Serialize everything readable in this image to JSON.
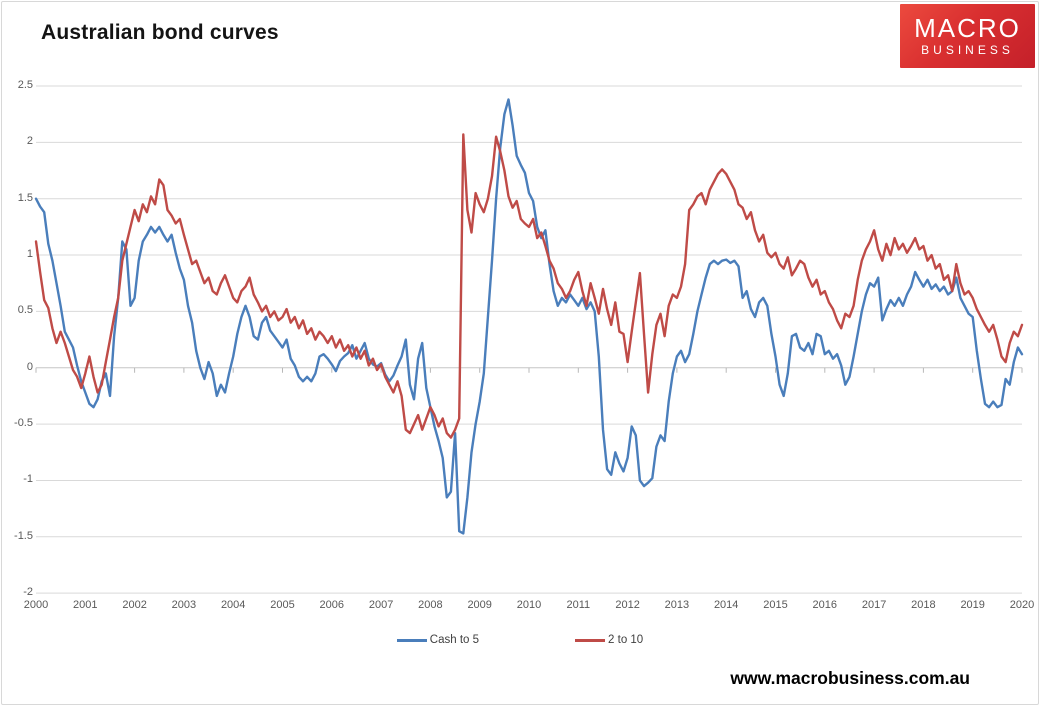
{
  "header": {
    "title": "Australian bond curves",
    "logo": {
      "line1": "MACRO",
      "line2": "BUSINESS",
      "bg_color": "#d92f30"
    }
  },
  "footer": {
    "url": "www.macrobusiness.com.au"
  },
  "chart_data": {
    "type": "line",
    "title": "Australian bond curves",
    "xlabel": "",
    "ylabel": "",
    "ylim": [
      -2,
      2.5
    ],
    "grid": "horizontal",
    "legend_position": "bottom",
    "x_start_year": 2000,
    "x_end_year": 2020,
    "points_per_year": 12,
    "x_tick_labels": [
      "2000",
      "2001",
      "2002",
      "2003",
      "2004",
      "2005",
      "2006",
      "2007",
      "2008",
      "2009",
      "2010",
      "2011",
      "2012",
      "2013",
      "2014",
      "2015",
      "2016",
      "2017",
      "2018",
      "2019",
      "2020"
    ],
    "y_ticks": [
      2.5,
      2,
      1.5,
      1,
      0.5,
      0,
      -0.5,
      -1,
      -1.5,
      -2
    ],
    "y_tick_labels": [
      "2.5",
      "2",
      "1.5",
      "1",
      "0.5",
      "0",
      "-0.5",
      "-1",
      "-1.5",
      "-2"
    ],
    "colors": {
      "grid": "#d9d9d9",
      "zero_axis": "#c6c6c6",
      "tick": "#b8b8b8",
      "tick_text": "#595959"
    },
    "series": [
      {
        "name": "Cash to 5",
        "color": "#4a7ebb",
        "values": [
          1.5,
          1.43,
          1.38,
          1.1,
          0.95,
          0.75,
          0.55,
          0.32,
          0.25,
          0.18,
          0.02,
          -0.12,
          -0.22,
          -0.32,
          -0.35,
          -0.28,
          -0.12,
          -0.05,
          -0.25,
          0.28,
          0.62,
          1.12,
          1.05,
          0.55,
          0.62,
          0.95,
          1.12,
          1.18,
          1.25,
          1.2,
          1.25,
          1.18,
          1.12,
          1.18,
          1.02,
          0.88,
          0.78,
          0.55,
          0.4,
          0.15,
          0.0,
          -0.1,
          0.05,
          -0.05,
          -0.25,
          -0.15,
          -0.22,
          -0.05,
          0.1,
          0.3,
          0.45,
          0.55,
          0.45,
          0.28,
          0.25,
          0.4,
          0.45,
          0.33,
          0.28,
          0.23,
          0.18,
          0.25,
          0.08,
          0.02,
          -0.08,
          -0.12,
          -0.08,
          -0.12,
          -0.05,
          0.1,
          0.12,
          0.08,
          0.03,
          -0.03,
          0.06,
          0.1,
          0.13,
          0.2,
          0.08,
          0.15,
          0.22,
          0.08,
          0.03,
          0.01,
          0.04,
          -0.06,
          -0.12,
          -0.07,
          0.02,
          0.1,
          0.25,
          -0.15,
          -0.28,
          0.08,
          0.22,
          -0.18,
          -0.35,
          -0.52,
          -0.65,
          -0.8,
          -1.15,
          -1.1,
          -0.58,
          -1.45,
          -1.47,
          -1.15,
          -0.75,
          -0.5,
          -0.3,
          -0.05,
          0.45,
          0.95,
          1.5,
          1.95,
          2.25,
          2.38,
          2.15,
          1.88,
          1.8,
          1.73,
          1.55,
          1.48,
          1.25,
          1.15,
          1.22,
          0.92,
          0.68,
          0.55,
          0.62,
          0.58,
          0.65,
          0.6,
          0.55,
          0.62,
          0.52,
          0.58,
          0.5,
          0.1,
          -0.55,
          -0.9,
          -0.95,
          -0.75,
          -0.85,
          -0.92,
          -0.8,
          -0.52,
          -0.6,
          -1.0,
          -1.05,
          -1.02,
          -0.98,
          -0.7,
          -0.6,
          -0.65,
          -0.3,
          -0.05,
          0.1,
          0.15,
          0.05,
          0.12,
          0.3,
          0.5,
          0.65,
          0.8,
          0.92,
          0.95,
          0.92,
          0.95,
          0.96,
          0.93,
          0.95,
          0.9,
          0.62,
          0.68,
          0.52,
          0.45,
          0.58,
          0.62,
          0.55,
          0.3,
          0.1,
          -0.15,
          -0.25,
          -0.05,
          0.28,
          0.3,
          0.18,
          0.15,
          0.22,
          0.12,
          0.3,
          0.28,
          0.12,
          0.15,
          0.08,
          0.12,
          0.02,
          -0.15,
          -0.08,
          0.1,
          0.3,
          0.5,
          0.65,
          0.75,
          0.72,
          0.8,
          0.42,
          0.52,
          0.6,
          0.55,
          0.62,
          0.55,
          0.65,
          0.72,
          0.85,
          0.78,
          0.72,
          0.78,
          0.7,
          0.74,
          0.68,
          0.72,
          0.65,
          0.68,
          0.8,
          0.62,
          0.55,
          0.48,
          0.45,
          0.15,
          -0.1,
          -0.32,
          -0.35,
          -0.3,
          -0.35,
          -0.33,
          -0.1,
          -0.15,
          0.05,
          0.18,
          0.12
        ]
      },
      {
        "name": "2 to 10",
        "color": "#bf4b47",
        "values": [
          1.12,
          0.85,
          0.6,
          0.53,
          0.35,
          0.22,
          0.32,
          0.22,
          0.1,
          -0.02,
          -0.08,
          -0.18,
          -0.05,
          0.1,
          -0.08,
          -0.22,
          -0.15,
          0.05,
          0.25,
          0.45,
          0.62,
          0.95,
          1.1,
          1.25,
          1.4,
          1.3,
          1.45,
          1.38,
          1.52,
          1.45,
          1.67,
          1.62,
          1.4,
          1.35,
          1.28,
          1.32,
          1.18,
          1.05,
          0.92,
          0.95,
          0.85,
          0.75,
          0.8,
          0.68,
          0.65,
          0.75,
          0.82,
          0.72,
          0.62,
          0.58,
          0.68,
          0.72,
          0.8,
          0.65,
          0.58,
          0.5,
          0.55,
          0.45,
          0.5,
          0.42,
          0.45,
          0.52,
          0.4,
          0.45,
          0.35,
          0.42,
          0.3,
          0.35,
          0.25,
          0.32,
          0.28,
          0.22,
          0.28,
          0.18,
          0.25,
          0.15,
          0.2,
          0.1,
          0.18,
          0.08,
          0.15,
          0.02,
          0.08,
          -0.02,
          0.03,
          -0.08,
          -0.15,
          -0.22,
          -0.12,
          -0.25,
          -0.55,
          -0.58,
          -0.5,
          -0.42,
          -0.55,
          -0.45,
          -0.35,
          -0.42,
          -0.52,
          -0.45,
          -0.58,
          -0.62,
          -0.55,
          -0.45,
          2.07,
          1.4,
          1.2,
          1.55,
          1.45,
          1.38,
          1.5,
          1.7,
          2.05,
          1.92,
          1.75,
          1.52,
          1.42,
          1.48,
          1.32,
          1.28,
          1.25,
          1.32,
          1.15,
          1.2,
          1.08,
          0.95,
          0.88,
          0.75,
          0.7,
          0.62,
          0.68,
          0.78,
          0.85,
          0.68,
          0.55,
          0.75,
          0.62,
          0.48,
          0.7,
          0.52,
          0.38,
          0.58,
          0.32,
          0.3,
          0.05,
          0.32,
          0.58,
          0.84,
          0.3,
          -0.22,
          0.12,
          0.38,
          0.48,
          0.28,
          0.55,
          0.65,
          0.62,
          0.72,
          0.92,
          1.4,
          1.45,
          1.52,
          1.55,
          1.45,
          1.58,
          1.65,
          1.72,
          1.76,
          1.72,
          1.65,
          1.58,
          1.45,
          1.42,
          1.32,
          1.38,
          1.22,
          1.12,
          1.18,
          1.02,
          0.98,
          1.02,
          0.92,
          0.88,
          0.98,
          0.82,
          0.88,
          0.95,
          0.92,
          0.8,
          0.72,
          0.78,
          0.65,
          0.68,
          0.58,
          0.52,
          0.42,
          0.35,
          0.48,
          0.45,
          0.55,
          0.78,
          0.95,
          1.05,
          1.12,
          1.22,
          1.05,
          0.95,
          1.1,
          1.0,
          1.15,
          1.05,
          1.1,
          1.02,
          1.08,
          1.15,
          1.05,
          1.08,
          0.95,
          1.0,
          0.88,
          0.92,
          0.78,
          0.82,
          0.68,
          0.92,
          0.75,
          0.65,
          0.68,
          0.62,
          0.52,
          0.45,
          0.38,
          0.32,
          0.38,
          0.25,
          0.1,
          0.05,
          0.22,
          0.32,
          0.28,
          0.38
        ]
      }
    ]
  }
}
